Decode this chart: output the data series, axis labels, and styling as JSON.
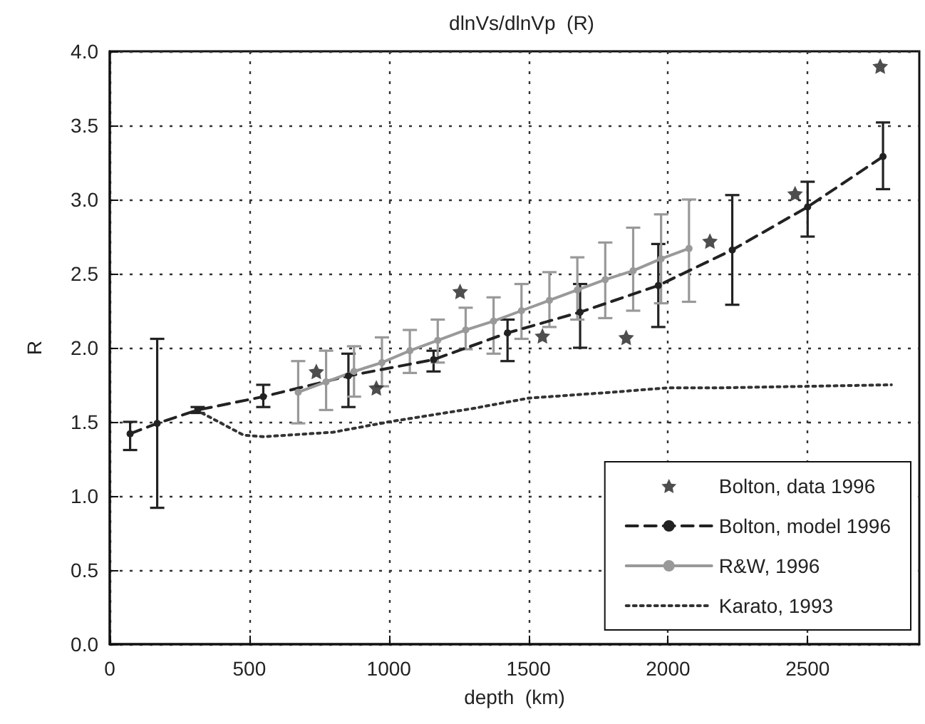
{
  "chart_data": {
    "type": "line",
    "title": "dlnVs/dlnVp  (R)",
    "xlabel": "depth  (km)",
    "ylabel": "R",
    "xlim": [
      0,
      2900
    ],
    "xticks": [
      0,
      500,
      1000,
      1500,
      2000,
      2500
    ],
    "ylim": [
      0,
      4
    ],
    "yticks": [
      {
        "value": 0,
        "label": "0.0"
      },
      {
        "value": 0.5,
        "label": "0.5"
      },
      {
        "value": 1,
        "label": "1.0"
      },
      {
        "value": 1.5,
        "label": "1.5"
      },
      {
        "value": 2,
        "label": "2.0"
      },
      {
        "value": 2.5,
        "label": "2.5"
      },
      {
        "value": 3,
        "label": "3.0"
      },
      {
        "value": 3.5,
        "label": "3.5"
      },
      {
        "value": 4,
        "label": "4.0"
      }
    ],
    "grid": true,
    "legend": "bottom right",
    "series": [
      {
        "name": "Bolton, data 1996",
        "type": "scatter",
        "marker": "star",
        "color": "#222222",
        "x": [
          740,
          955,
          1255,
          1550,
          1850,
          2150,
          2455,
          2760
        ],
        "values": [
          1.84,
          1.73,
          2.38,
          2.08,
          2.07,
          2.72,
          3.04,
          3.9
        ]
      },
      {
        "name": "Bolton, model 1996",
        "line_style": "dashed",
        "marker": "circle",
        "color": "#222222",
        "x": [
          73,
          170,
          315,
          550,
          855,
          1160,
          1425,
          1685,
          1965,
          2230,
          2500,
          2770
        ],
        "values": [
          1.42,
          1.49,
          1.58,
          1.67,
          1.81,
          1.92,
          2.1,
          2.24,
          2.42,
          2.66,
          2.95,
          3.29
        ],
        "errors": [
          [
            1.31,
            1.5
          ],
          [
            0.92,
            2.06
          ],
          [
            1.56,
            1.6
          ],
          [
            1.6,
            1.75
          ],
          [
            1.6,
            1.96
          ],
          [
            1.84,
            1.98
          ],
          [
            1.91,
            2.19
          ],
          [
            2.0,
            2.43
          ],
          [
            2.14,
            2.7
          ],
          [
            2.29,
            3.03
          ],
          [
            2.75,
            3.12
          ],
          [
            3.07,
            3.52
          ]
        ]
      },
      {
        "name": "R&W, 1996",
        "line_style": "solid",
        "marker": "circle",
        "color": "#999999",
        "x": [
          675,
          775,
          875,
          975,
          1075,
          1175,
          1275,
          1375,
          1475,
          1575,
          1675,
          1775,
          1875,
          1975,
          2075
        ],
        "values": [
          1.7,
          1.77,
          1.84,
          1.9,
          1.98,
          2.05,
          2.12,
          2.18,
          2.25,
          2.32,
          2.39,
          2.46,
          2.52,
          2.6,
          2.67
        ],
        "errors": [
          [
            1.49,
            1.91
          ],
          [
            1.58,
            1.98
          ],
          [
            1.67,
            2.01
          ],
          [
            1.74,
            2.07
          ],
          [
            1.83,
            2.12
          ],
          [
            1.9,
            2.19
          ],
          [
            1.99,
            2.27
          ],
          [
            1.96,
            2.34
          ],
          [
            2.06,
            2.43
          ],
          [
            2.14,
            2.51
          ],
          [
            2.19,
            2.61
          ],
          [
            2.2,
            2.71
          ],
          [
            2.25,
            2.81
          ],
          [
            2.3,
            2.9
          ],
          [
            2.31,
            3.0
          ]
        ]
      },
      {
        "name": "Karato, 1993",
        "line_style": "dotted",
        "marker": "none",
        "color": "#333333",
        "x": [
          330,
          400,
          480,
          550,
          800,
          1000,
          1300,
          1500,
          1800,
          2000,
          2200,
          2500,
          2800
        ],
        "values": [
          1.56,
          1.49,
          1.41,
          1.4,
          1.43,
          1.5,
          1.59,
          1.66,
          1.7,
          1.73,
          1.73,
          1.74,
          1.75
        ]
      }
    ]
  }
}
